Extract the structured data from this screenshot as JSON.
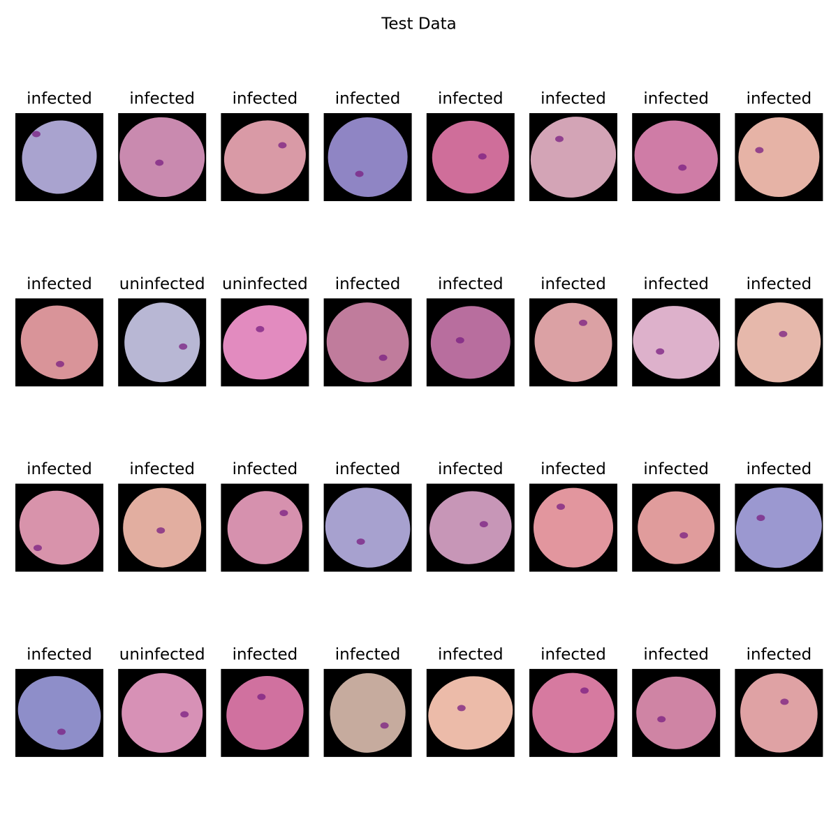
{
  "title": "Test Data",
  "images": [
    {
      "label": "infected"
    },
    {
      "label": "infected"
    },
    {
      "label": "infected"
    },
    {
      "label": "infected"
    },
    {
      "label": "infected"
    },
    {
      "label": "infected"
    },
    {
      "label": "infected"
    },
    {
      "label": "infected"
    },
    {
      "label": "infected"
    },
    {
      "label": "uninfected"
    },
    {
      "label": "uninfected"
    },
    {
      "label": "infected"
    },
    {
      "label": "infected"
    },
    {
      "label": "infected"
    },
    {
      "label": "infected"
    },
    {
      "label": "infected"
    },
    {
      "label": "infected"
    },
    {
      "label": "infected"
    },
    {
      "label": "infected"
    },
    {
      "label": "infected"
    },
    {
      "label": "infected"
    },
    {
      "label": "infected"
    },
    {
      "label": "infected"
    },
    {
      "label": "infected"
    },
    {
      "label": "infected"
    },
    {
      "label": "uninfected"
    },
    {
      "label": "infected"
    },
    {
      "label": "infected"
    },
    {
      "label": "infected"
    },
    {
      "label": "infected"
    },
    {
      "label": "infected"
    },
    {
      "label": "infected"
    }
  ]
}
